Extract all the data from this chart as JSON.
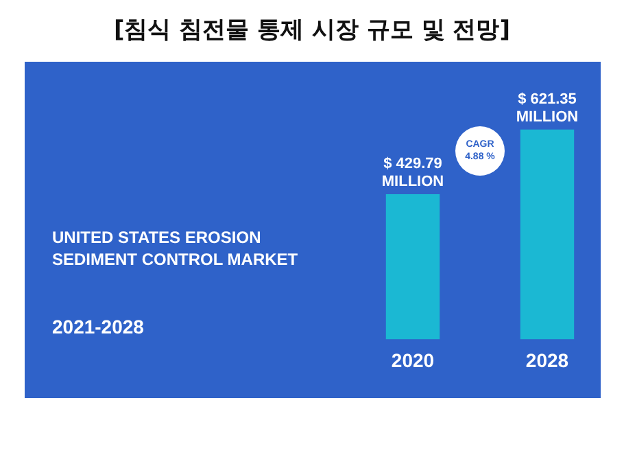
{
  "chart_data": {
    "type": "bar",
    "title": "[침식 침전물 통제 시장 규모 및 전망]",
    "subtitle": "UNITED STATES EROSION SEDIMENT CONTROL MARKET",
    "categories": [
      "2020",
      "2028"
    ],
    "values": [
      429.79,
      621.35
    ],
    "color": "#1bb8d3",
    "value_labels": [
      "$ 429.79 MILLION",
      "$ 621.35 MILLION"
    ],
    "annotations": [
      "2021-2028",
      "CAGR 4.88 %"
    ],
    "relative": false,
    "grid": false,
    "legend": false
  }
}
